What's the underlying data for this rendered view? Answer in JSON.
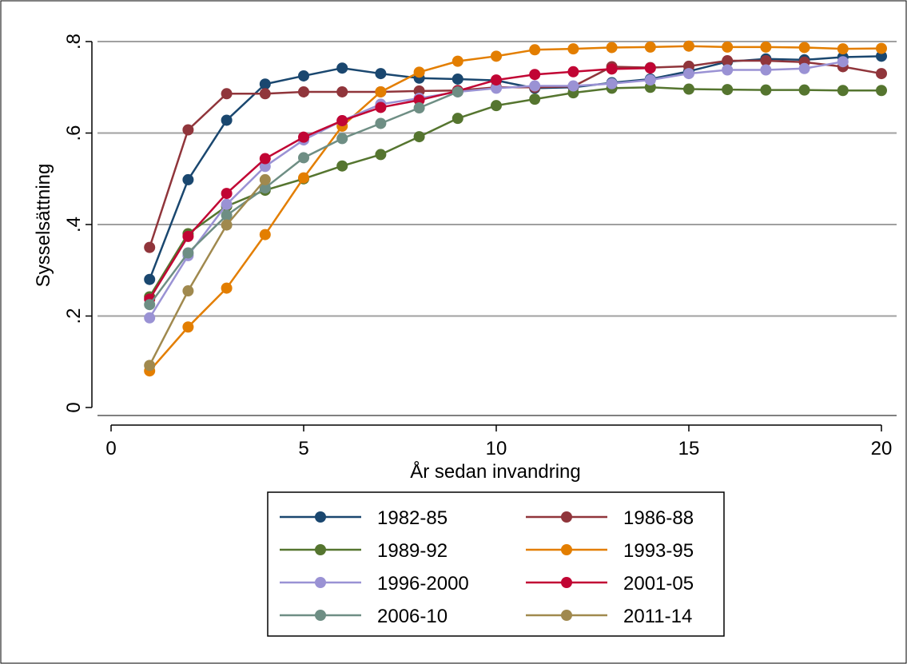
{
  "chart_data": {
    "type": "line",
    "title": "",
    "xlabel": "År sedan invandring",
    "ylabel": "Sysselsättning",
    "xlim": [
      0,
      20
    ],
    "ylim": [
      0,
      0.8
    ],
    "x_ticks": [
      0,
      5,
      10,
      15,
      20
    ],
    "x_tick_labels": [
      "0",
      "5",
      "10",
      "15",
      "20"
    ],
    "y_ticks": [
      0,
      0.2,
      0.4,
      0.6,
      0.8
    ],
    "y_tick_labels": [
      "0",
      ".2",
      ".4",
      ".6",
      ".8"
    ],
    "grid": "horizontal",
    "legend_position": "bottom",
    "x": [
      1,
      2,
      3,
      4,
      5,
      6,
      7,
      8,
      9,
      10,
      11,
      12,
      13,
      14,
      15,
      16,
      17,
      18,
      19,
      20
    ],
    "series": [
      {
        "name": "1982-85",
        "color": "#1a476f",
        "values": [
          0.28,
          0.498,
          0.628,
          0.707,
          0.725,
          0.742,
          0.73,
          0.72,
          0.718,
          0.715,
          0.698,
          0.7,
          0.71,
          0.718,
          0.735,
          0.756,
          0.762,
          0.76,
          0.766,
          0.768
        ]
      },
      {
        "name": "1986-88",
        "color": "#90353b",
        "values": [
          0.35,
          0.607,
          0.686,
          0.686,
          0.69,
          0.69,
          0.69,
          0.692,
          0.693,
          0.7,
          0.7,
          0.702,
          0.745,
          0.743,
          0.746,
          0.758,
          0.758,
          0.755,
          0.745,
          0.73
        ]
      },
      {
        "name": "1989-92",
        "color": "#55752f",
        "values": [
          0.242,
          0.38,
          0.44,
          0.475,
          0.5,
          0.528,
          0.553,
          0.592,
          0.632,
          0.66,
          0.674,
          0.688,
          0.698,
          0.7,
          0.696,
          0.695,
          0.694,
          0.694,
          0.693,
          0.693
        ]
      },
      {
        "name": "1993-95",
        "color": "#e37e00",
        "values": [
          0.08,
          0.176,
          0.261,
          0.378,
          0.502,
          0.615,
          0.69,
          0.733,
          0.757,
          0.768,
          0.782,
          0.784,
          0.787,
          0.788,
          0.79,
          0.788,
          0.788,
          0.787,
          0.784,
          0.785
        ]
      },
      {
        "name": "1996-2000",
        "color": "#9a92d4",
        "values": [
          0.196,
          0.332,
          0.444,
          0.527,
          0.585,
          0.627,
          0.663,
          0.676,
          0.69,
          0.698,
          0.703,
          0.703,
          0.708,
          0.716,
          0.73,
          0.738,
          0.738,
          0.741,
          0.756,
          null
        ]
      },
      {
        "name": "2001-05",
        "color": "#c10534",
        "values": [
          0.237,
          0.374,
          0.468,
          0.544,
          0.591,
          0.627,
          0.656,
          0.672,
          0.692,
          0.716,
          0.728,
          0.734,
          0.74,
          0.742,
          null,
          null,
          null,
          null,
          null,
          null
        ]
      },
      {
        "name": "2006-10",
        "color": "#6e8e84",
        "values": [
          0.225,
          0.338,
          0.42,
          0.48,
          0.546,
          0.588,
          0.621,
          0.655,
          0.69,
          null,
          null,
          null,
          null,
          null,
          null,
          null,
          null,
          null,
          null,
          null
        ]
      },
      {
        "name": "2011-14",
        "color": "#a0894e",
        "values": [
          0.092,
          0.255,
          0.399,
          0.498,
          null,
          null,
          null,
          null,
          null,
          null,
          null,
          null,
          null,
          null,
          null,
          null,
          null,
          null,
          null,
          null
        ]
      }
    ]
  }
}
